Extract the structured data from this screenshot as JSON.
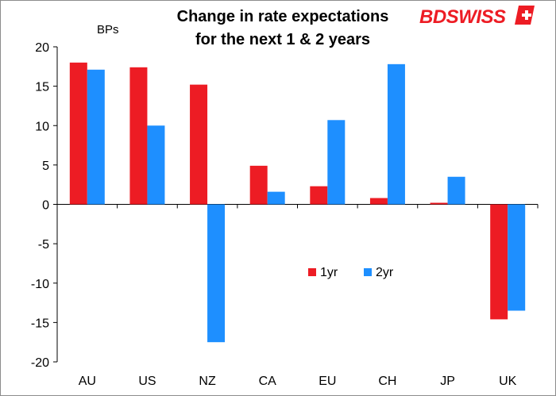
{
  "brand": {
    "name_part1": "BD",
    "name_part2": "SWISS"
  },
  "chart_data": {
    "type": "bar",
    "title_lines": [
      "Change in rate expectations",
      "for the next 1 & 2 years"
    ],
    "ylabel": "BPs",
    "xlabel": "",
    "categories": [
      "AU",
      "US",
      "NZ",
      "CA",
      "EU",
      "CH",
      "JP",
      "UK"
    ],
    "series": [
      {
        "name": "1yr",
        "color": "#ed1c24",
        "values": [
          18.0,
          17.4,
          15.2,
          4.9,
          2.3,
          0.8,
          0.2,
          -14.6
        ]
      },
      {
        "name": "2yr",
        "color": "#1e8fff",
        "values": [
          17.1,
          10.0,
          -17.5,
          1.6,
          10.7,
          17.8,
          3.5,
          -13.5
        ]
      }
    ],
    "ylim": [
      -20,
      20
    ],
    "yticks": [
      20,
      15,
      10,
      5,
      0,
      -5,
      -10,
      -15,
      -20
    ],
    "grid": false,
    "legend_position": "center"
  }
}
